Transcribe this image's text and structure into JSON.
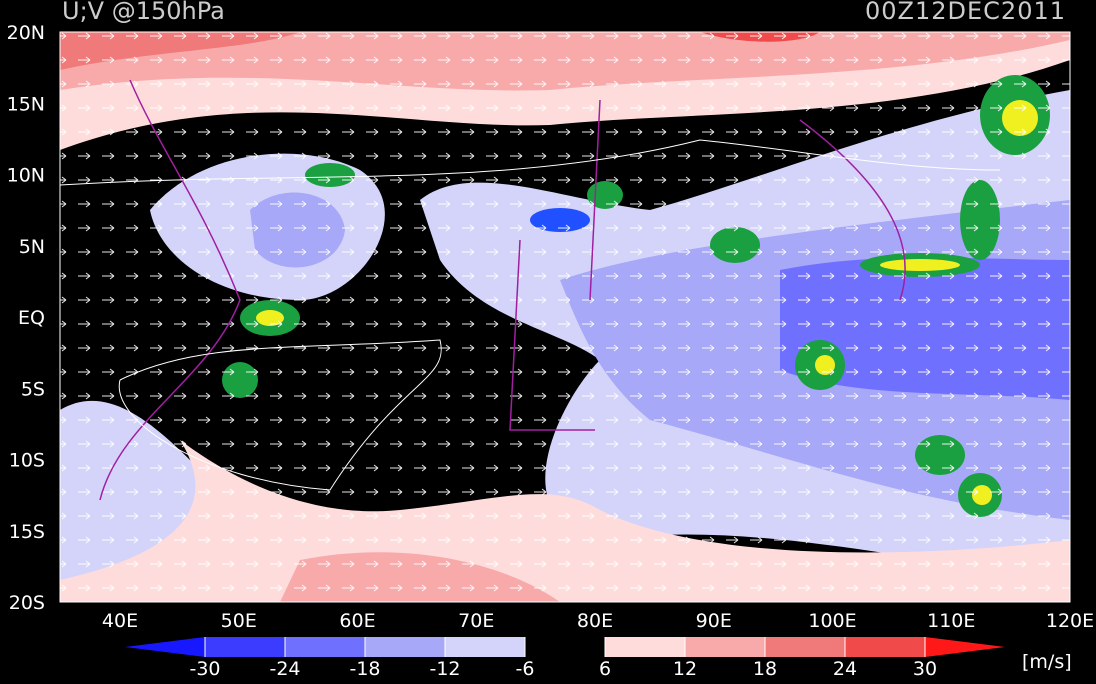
{
  "map": {
    "title": "U;V @150hPa",
    "time": "00Z12DEC2011",
    "lat_labels": [
      "20N",
      "15N",
      "10N",
      "5N",
      "EQ",
      "5S",
      "10S",
      "15S",
      "20S"
    ],
    "lon_labels": [
      "40E",
      "50E",
      "60E",
      "70E",
      "80E",
      "90E",
      "100E",
      "110E",
      "120E"
    ],
    "colorbar": {
      "ticks": [
        -30,
        -24,
        -18,
        -12,
        -6,
        6,
        12,
        18,
        24,
        30
      ],
      "colors": [
        "#1818ff",
        "#3c3cff",
        "#7070ff",
        "#a8a8f8",
        "#d4d4fa",
        "#000000",
        "#ffdcdc",
        "#f8aaaa",
        "#f07a7a",
        "#f04a4a",
        "#ff1818"
      ],
      "unit": "[m/s]"
    }
  }
}
